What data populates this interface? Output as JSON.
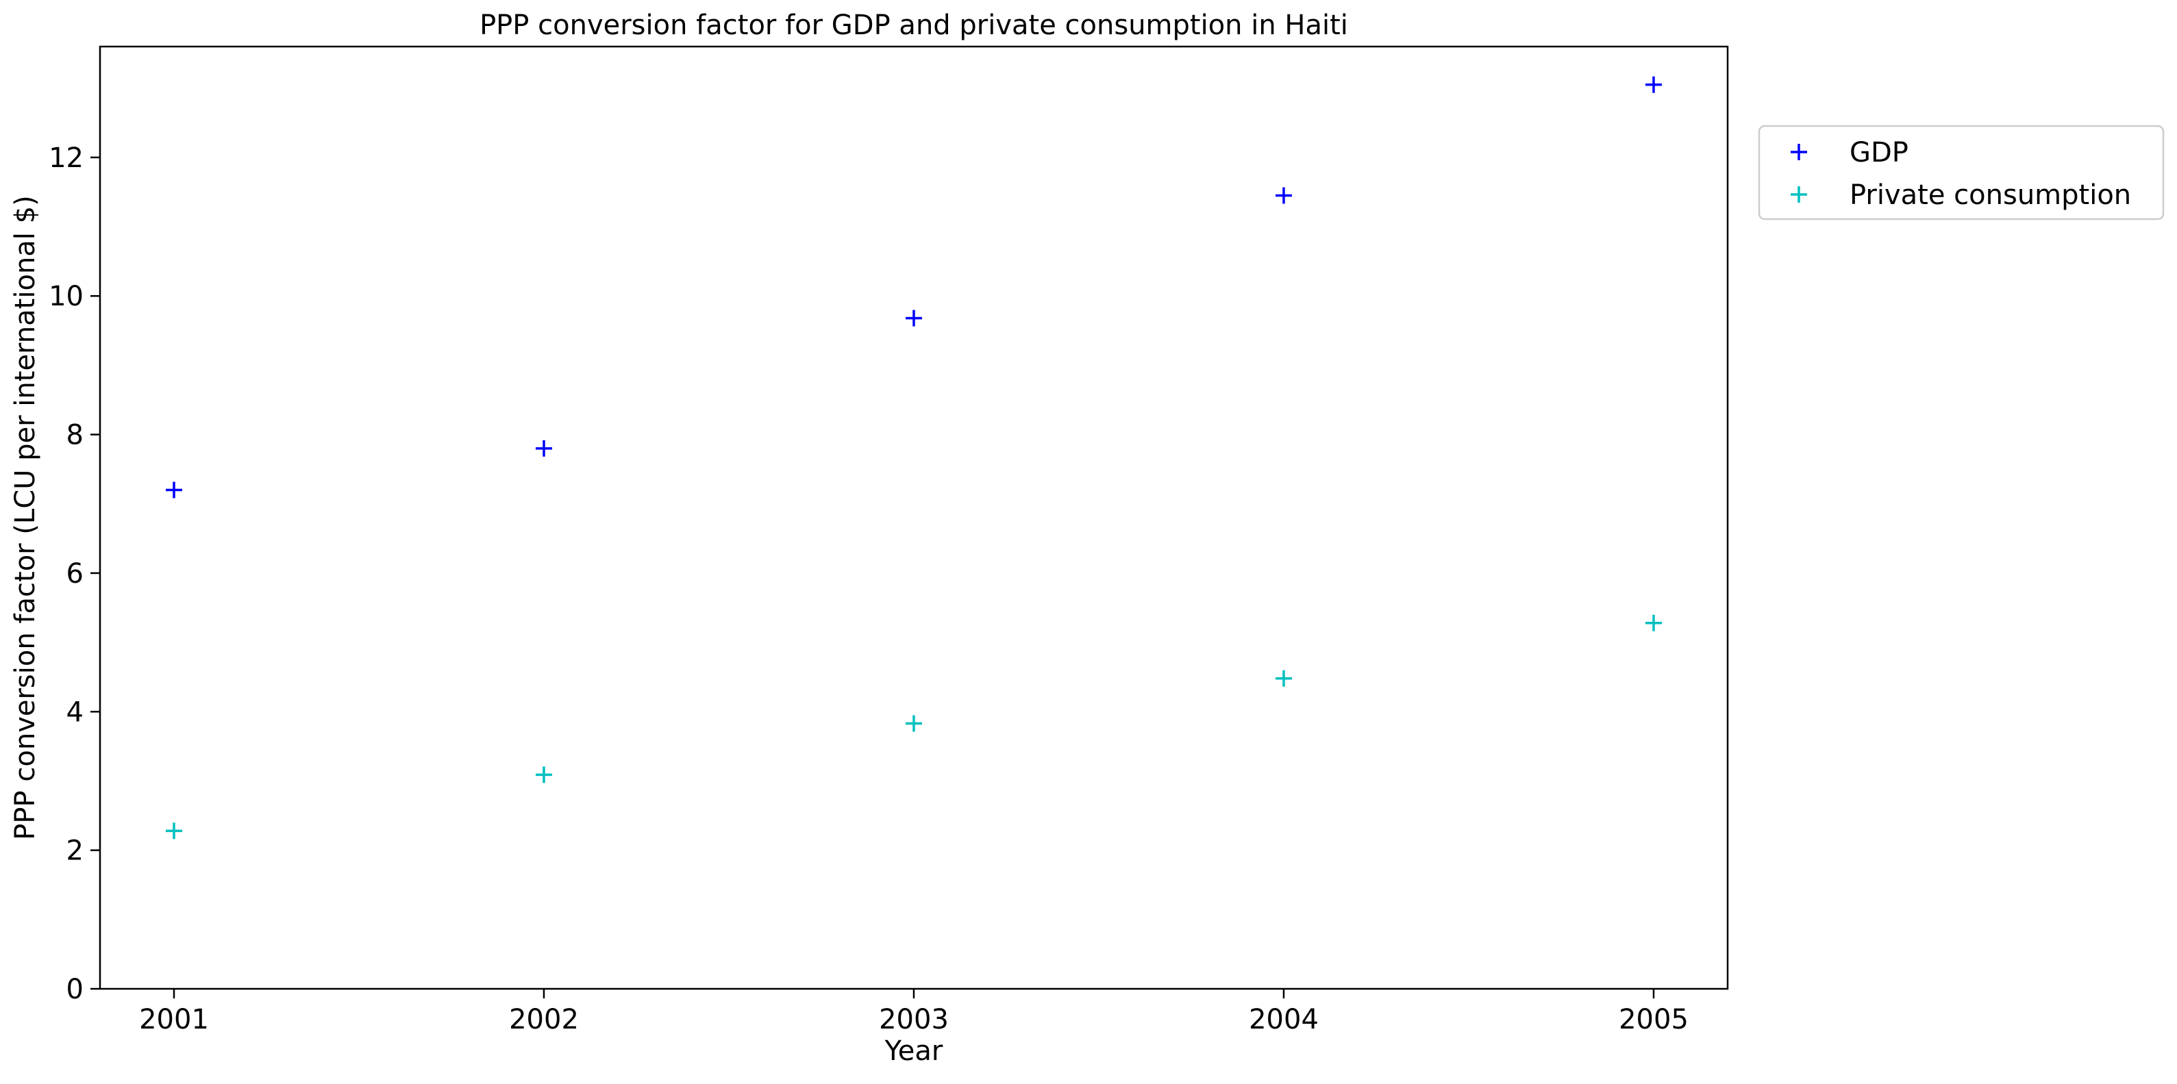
{
  "chart_data": {
    "type": "scatter",
    "title": "PPP conversion factor for GDP and private consumption in Haiti",
    "xlabel": "Year",
    "ylabel": "PPP conversion factor (LCU per international $)",
    "x": [
      2001,
      2002,
      2003,
      2004,
      2005
    ],
    "x_tick_labels": [
      "2001",
      "2002",
      "2003",
      "2004",
      "2005"
    ],
    "xlim": [
      2000.8,
      2005.2
    ],
    "ylim": [
      0,
      13.6
    ],
    "y_ticks": [
      0,
      2,
      4,
      6,
      8,
      10,
      12
    ],
    "y_tick_labels": [
      "0",
      "2",
      "4",
      "6",
      "8",
      "10",
      "12"
    ],
    "marker": "plus",
    "grid": false,
    "legend_position": "outside-top-right",
    "series": [
      {
        "name": "GDP",
        "color": "#0000ff",
        "values": [
          7.2,
          7.8,
          9.68,
          11.45,
          13.05
        ]
      },
      {
        "name": " Private consumption",
        "color": "#00bfbf",
        "values": [
          2.28,
          3.09,
          3.83,
          4.48,
          5.28
        ]
      }
    ]
  }
}
